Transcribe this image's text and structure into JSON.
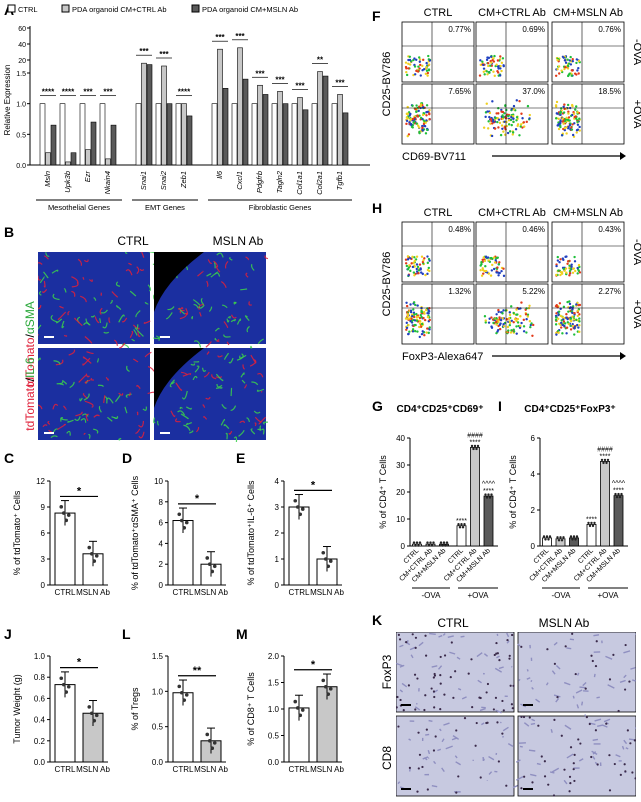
{
  "panel_letters": {
    "A": "A",
    "B": "B",
    "C": "C",
    "D": "D",
    "E": "E",
    "F": "F",
    "G": "G",
    "H": "H",
    "I": "I",
    "J": "J",
    "K": "K",
    "L": "L",
    "M": "M"
  },
  "colors": {
    "ctrl": "#ffffff",
    "ctrl_ab": "#c8c8c8",
    "msln_ab": "#5a5a5a",
    "micro_blue": "#1b2fa0",
    "micro_green": "#3bd14a",
    "micro_red": "#e0203a",
    "ihc_bg": "#c7c9e0",
    "ihc_dot": "#3a2a4a"
  },
  "panelA": {
    "legend": [
      "CTRL",
      "PDA organoid CM+CTRL Ab",
      "PDA organoid CM+MSLN Ab"
    ],
    "ylabel": "Relative Expression",
    "yticks": [
      "0.0",
      "0.5",
      "1.0",
      "1.5",
      "20",
      "40",
      "60"
    ],
    "genes": [
      "Msln",
      "Upk3b",
      "Ezr",
      "Nkain4",
      "Snai1",
      "Snai2",
      "Zeb1",
      "Il6",
      "Cxcl1",
      "Pdgfrb",
      "Tagln2",
      "Col1a1",
      "Col2a1",
      "Tgfb1"
    ],
    "groups": [
      "Mesothelial Genes",
      "EMT Genes",
      "Fibroblastic Genes"
    ],
    "sig": [
      "****",
      "***",
      "****",
      "***",
      "***",
      "****",
      "***",
      "****",
      "***",
      "****",
      "***",
      "****",
      "****",
      "***",
      "***",
      "****",
      "***",
      "****",
      "***",
      "****",
      "***",
      "**",
      "***",
      "**",
      "**",
      "*",
      "***",
      "**",
      "*",
      "**"
    ]
  },
  "panelB": {
    "cols": [
      "CTRL",
      "MSLN Ab"
    ],
    "row1": [
      "tdTomato",
      "/",
      "αSMA"
    ],
    "row2": [
      "tdTomato",
      "/",
      "IL-6"
    ]
  },
  "panelF": {
    "cols": [
      "CTRL",
      "CM+CTRL Ab",
      "CM+MSLN Ab"
    ],
    "rows": [
      "-OVA",
      "+OVA"
    ],
    "pcts": [
      "0.77%",
      "0.69%",
      "0.76%",
      "7.65%",
      "37.0%",
      "18.5%"
    ],
    "ylabel": "CD25-BV786",
    "xlabel": "CD69-BV711"
  },
  "panelH": {
    "cols": [
      "CTRL",
      "CM+CTRL Ab",
      "CM+MSLN Ab"
    ],
    "rows": [
      "-OVA",
      "+OVA"
    ],
    "pcts": [
      "0.48%",
      "0.46%",
      "0.43%",
      "1.32%",
      "5.22%",
      "2.27%"
    ],
    "ylabel": "CD25-BV786",
    "xlabel": "FoxP3-Alexa647"
  },
  "panelK": {
    "cols": [
      "CTRL",
      "MSLN Ab"
    ],
    "rows": [
      "FoxP3",
      "CD8"
    ]
  },
  "chart_data": [
    {
      "id": "C",
      "type": "bar",
      "categories": [
        "CTRL",
        "MSLN Ab"
      ],
      "values": [
        8.3,
        3.6
      ],
      "ylim": [
        0,
        12
      ],
      "yticks": [
        "0",
        "3",
        "6",
        "9",
        "12"
      ],
      "ylabel": "% of tdTomato⁺ Cells",
      "sig": "*"
    },
    {
      "id": "D",
      "type": "bar",
      "categories": [
        "CTRL",
        "MSLN Ab"
      ],
      "values": [
        6.2,
        2.0
      ],
      "ylim": [
        0,
        10
      ],
      "yticks": [
        "0",
        "2",
        "4",
        "6",
        "8",
        "10"
      ],
      "ylabel": "% of tdTomato⁺αSMA⁺ Cells",
      "sig": "*"
    },
    {
      "id": "E",
      "type": "bar",
      "categories": [
        "CTRL",
        "MSLN Ab"
      ],
      "values": [
        3.0,
        1.0
      ],
      "ylim": [
        0,
        4
      ],
      "yticks": [
        "0",
        "1",
        "2",
        "3",
        "4"
      ],
      "ylabel": "% of tdTomato⁺IL-6⁺ Cells",
      "sig": "*"
    },
    {
      "id": "G",
      "type": "bar",
      "title": "CD4⁺CD25⁺CD69⁺",
      "categories": [
        "CTRL",
        "CM+CTRL Ab",
        "CM+MSLN Ab",
        "CTRL",
        "CM+CTRL Ab",
        "CM+MSLN Ab"
      ],
      "values": [
        0.7,
        0.7,
        0.7,
        7.5,
        36.5,
        18.5
      ],
      "ylim": [
        0,
        40
      ],
      "yticks": [
        "0",
        "10",
        "20",
        "30",
        "40"
      ],
      "ylabel": "% of CD4⁺ T Cells",
      "groups": [
        "-OVA",
        "+OVA"
      ],
      "sig": [
        "",
        "",
        "",
        "****",
        "####\n****",
        "^^^^\n****"
      ]
    },
    {
      "id": "I",
      "type": "bar",
      "title": "CD4⁺CD25⁺FoxP3⁺",
      "categories": [
        "CTRL",
        "CM+CTRL Ab",
        "CM+MSLN Ab",
        "CTRL",
        "CM+CTRL Ab",
        "CM+MSLN Ab"
      ],
      "values": [
        0.45,
        0.4,
        0.45,
        1.2,
        4.7,
        2.8
      ],
      "ylim": [
        0,
        6
      ],
      "yticks": [
        "0",
        "2",
        "4",
        "6"
      ],
      "ylabel": "% of CD4⁺ T Cells",
      "groups": [
        "-OVA",
        "+OVA"
      ],
      "sig": [
        "",
        "",
        "",
        "****",
        "####\n****",
        "^^^^\n****"
      ]
    },
    {
      "id": "J",
      "type": "bar",
      "categories": [
        "CTRL",
        "MSLN Ab"
      ],
      "values": [
        0.73,
        0.46
      ],
      "ylim": [
        0,
        1.0
      ],
      "yticks": [
        "0.0",
        "0.2",
        "0.4",
        "0.6",
        "0.8",
        "1.0"
      ],
      "ylabel": "Tumor Weight (g)",
      "sig": "*"
    },
    {
      "id": "L",
      "type": "bar",
      "categories": [
        "CTRL",
        "MSLN Ab"
      ],
      "values": [
        0.98,
        0.3
      ],
      "ylim": [
        0,
        1.5
      ],
      "yticks": [
        "0.0",
        "0.5",
        "1.0",
        "1.5"
      ],
      "ylabel": "% of Tregs",
      "sig": "**"
    },
    {
      "id": "M",
      "type": "bar",
      "categories": [
        "CTRL",
        "MSLN Ab"
      ],
      "values": [
        1.02,
        1.42
      ],
      "ylim": [
        0,
        2.0
      ],
      "yticks": [
        "0.0",
        "0.5",
        "1.0",
        "1.5",
        "2.0"
      ],
      "ylabel": "% of CD8⁺ T Cells",
      "sig": "*"
    }
  ]
}
